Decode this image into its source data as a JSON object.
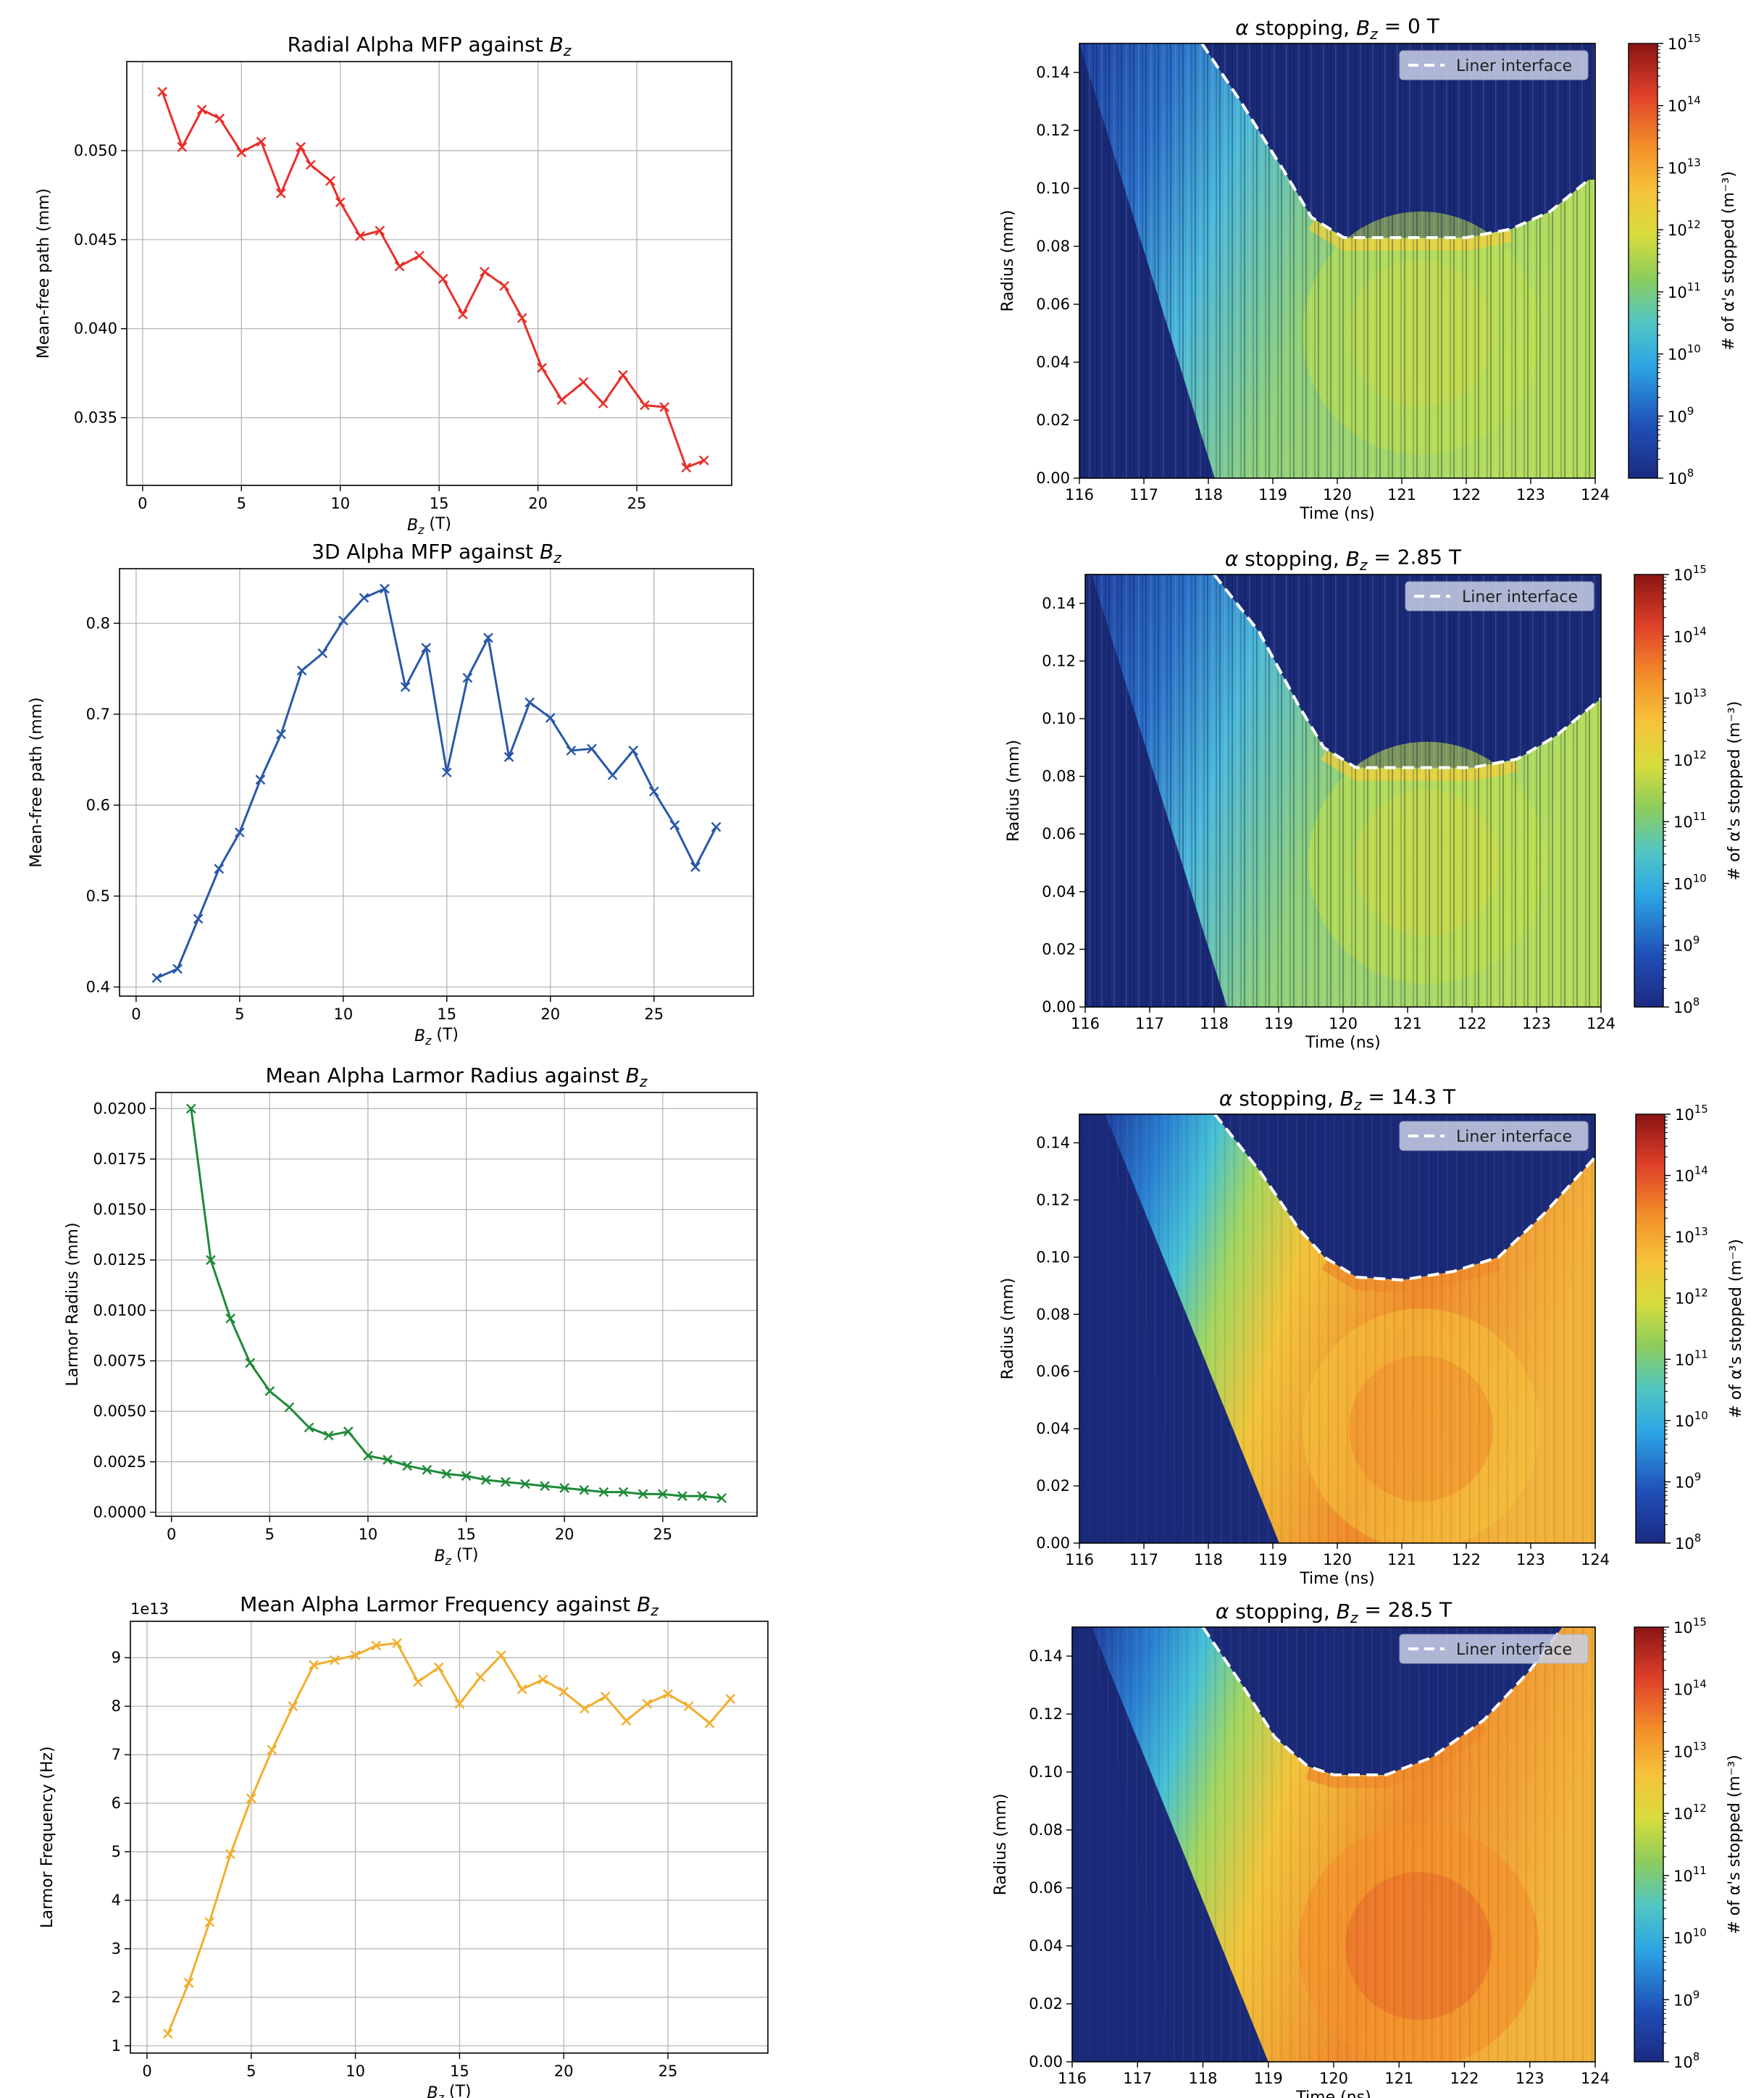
{
  "figure": {
    "left_panels": [
      {
        "id": "radial-mfp",
        "title": "Radial Alpha MFP against B_z",
        "xlabel": "B_z (T)",
        "ylabel": "Mean-free path (mm)",
        "color": "#e8302a",
        "xlim": [
          -0.8,
          29.8
        ],
        "ylim": [
          0.0312,
          0.055
        ],
        "xticks": [
          0,
          5,
          10,
          15,
          20,
          25
        ],
        "yticks": [
          0.035,
          0.04,
          0.045,
          0.05
        ],
        "yticklabels": [
          "0.035",
          "0.040",
          "0.045",
          "0.050"
        ],
        "multiplier": ""
      },
      {
        "id": "3d-mfp",
        "title": "3D Alpha MFP against B_z",
        "xlabel": "B_z (T)",
        "ylabel": "Mean-free path (mm)",
        "color": "#2a58a8",
        "xlim": [
          -0.8,
          29.8
        ],
        "ylim": [
          0.39,
          0.86
        ],
        "xticks": [
          0,
          5,
          10,
          15,
          20,
          25
        ],
        "yticks": [
          0.4,
          0.5,
          0.6,
          0.7,
          0.8
        ],
        "yticklabels": [
          "0.4",
          "0.5",
          "0.6",
          "0.7",
          "0.8"
        ],
        "multiplier": ""
      },
      {
        "id": "larmor-radius",
        "title": "Mean Alpha Larmor Radius against B_z",
        "xlabel": "B_z (T)",
        "ylabel": "Larmor Radius (mm)",
        "color": "#1e8a38",
        "xlim": [
          -0.8,
          29.8
        ],
        "ylim": [
          -0.0002,
          0.0208
        ],
        "xticks": [
          0,
          5,
          10,
          15,
          20,
          25
        ],
        "yticks": [
          0.0,
          0.0025,
          0.005,
          0.0075,
          0.01,
          0.0125,
          0.015,
          0.0175,
          0.02
        ],
        "yticklabels": [
          "0.0000",
          "0.0025",
          "0.0050",
          "0.0075",
          "0.0100",
          "0.0125",
          "0.0150",
          "0.0175",
          "0.0200"
        ],
        "multiplier": ""
      },
      {
        "id": "larmor-frequency",
        "title": "Mean Alpha Larmor Frequency against B_z",
        "xlabel": "B_z (T)",
        "ylabel": "Larmor Frequency (Hz)",
        "color": "#f2ae2e",
        "xlim": [
          -0.8,
          29.8
        ],
        "ylim": [
          0.85,
          9.75
        ],
        "xticks": [
          0,
          5,
          10,
          15,
          20,
          25
        ],
        "yticks": [
          1,
          2,
          3,
          4,
          5,
          6,
          7,
          8,
          9
        ],
        "yticklabels": [
          "1",
          "2",
          "3",
          "4",
          "5",
          "6",
          "7",
          "8",
          "9"
        ],
        "multiplier": "1e13"
      }
    ],
    "right_panels": [
      {
        "id": "stopping-0",
        "title": "α stopping, B_z = 0 T",
        "bz": 0.0
      },
      {
        "id": "stopping-2-85",
        "title": "α stopping, B_z = 2.85 T",
        "bz": 2.85
      },
      {
        "id": "stopping-14-3",
        "title": "α stopping, B_z = 14.3 T",
        "bz": 14.3
      },
      {
        "id": "stopping-28-5",
        "title": "α stopping, B_z = 28.5 T",
        "bz": 28.5
      }
    ],
    "heatmap_common": {
      "xlabel": "Time (ns)",
      "ylabel": "Radius (mm)",
      "legend_label": "Liner interface",
      "xlim": [
        116,
        124
      ],
      "ylim": [
        0,
        0.15
      ],
      "xticks": [
        116,
        117,
        118,
        119,
        120,
        121,
        122,
        123,
        124
      ],
      "yticks": [
        0.0,
        0.02,
        0.04,
        0.06,
        0.08,
        0.1,
        0.12,
        0.14
      ],
      "yticklabels": [
        "0.00",
        "0.02",
        "0.04",
        "0.06",
        "0.08",
        "0.10",
        "0.12",
        "0.14"
      ],
      "colorbar_label": "# of α's stopped (m⁻³)",
      "colorbar_exponents": [
        8,
        9,
        10,
        11,
        12,
        13,
        14,
        15
      ]
    }
  },
  "chart_data": [
    {
      "type": "line",
      "title": "Radial Alpha MFP against B_z",
      "xlabel": "B_z (T)",
      "ylabel": "Mean-free path (mm)",
      "x": [
        1.0,
        2.0,
        3.0,
        3.9,
        5.0,
        6.0,
        7.0,
        8.0,
        8.5,
        9.5,
        10.0,
        11.0,
        12.0,
        13.0,
        14.0,
        15.2,
        16.2,
        17.3,
        18.3,
        19.2,
        20.2,
        21.2,
        22.3,
        23.3,
        24.3,
        25.4,
        26.4,
        27.5,
        28.4
      ],
      "y": [
        0.0533,
        0.0502,
        0.0523,
        0.0518,
        0.0499,
        0.0505,
        0.0476,
        0.0502,
        0.0492,
        0.0483,
        0.0471,
        0.0452,
        0.0455,
        0.0435,
        0.0441,
        0.0428,
        0.0408,
        0.0432,
        0.0424,
        0.0406,
        0.0378,
        0.036,
        0.037,
        0.0358,
        0.0374,
        0.0357,
        0.0356,
        0.0322,
        0.0326
      ]
    },
    {
      "type": "line",
      "title": "3D Alpha MFP against B_z",
      "xlabel": "B_z (T)",
      "ylabel": "Mean-free path (mm)",
      "x": [
        1.0,
        2.0,
        3.0,
        4.0,
        5.0,
        6.0,
        7.0,
        8.0,
        9.0,
        10.0,
        11.0,
        12.0,
        13.0,
        14.0,
        15.0,
        16.0,
        17.0,
        18.0,
        19.0,
        20.0,
        21.0,
        22.0,
        23.0,
        24.0,
        25.0,
        26.0,
        27.0,
        28.0
      ],
      "y": [
        0.41,
        0.42,
        0.475,
        0.53,
        0.57,
        0.628,
        0.678,
        0.748,
        0.767,
        0.803,
        0.828,
        0.838,
        0.73,
        0.773,
        0.636,
        0.74,
        0.784,
        0.653,
        0.713,
        0.696,
        0.66,
        0.662,
        0.633,
        0.66,
        0.615,
        0.578,
        0.532,
        0.576
      ]
    },
    {
      "type": "line",
      "title": "Mean Alpha Larmor Radius against B_z",
      "xlabel": "B_z (T)",
      "ylabel": "Larmor Radius (mm)",
      "x": [
        1.0,
        2.0,
        3.0,
        4.0,
        5.0,
        6.0,
        7.0,
        8.0,
        9.0,
        10.0,
        11.0,
        12.0,
        13.0,
        14.0,
        15.0,
        16.0,
        17.0,
        18.0,
        19.0,
        20.0,
        21.0,
        22.0,
        23.0,
        24.0,
        25.0,
        26.0,
        27.0,
        28.0
      ],
      "y": [
        0.02,
        0.0125,
        0.0096,
        0.0074,
        0.006,
        0.0052,
        0.0042,
        0.0038,
        0.004,
        0.0028,
        0.0026,
        0.0023,
        0.0021,
        0.0019,
        0.0018,
        0.0016,
        0.0015,
        0.0014,
        0.0013,
        0.0012,
        0.0011,
        0.001,
        0.001,
        0.0009,
        0.0009,
        0.0008,
        0.0008,
        0.0007
      ]
    },
    {
      "type": "line",
      "title": "Mean Alpha Larmor Frequency against B_z",
      "xlabel": "B_z (T)",
      "ylabel": "Larmor Frequency (Hz)",
      "y_multiplier": "1e13",
      "x": [
        1.0,
        2.0,
        3.0,
        4.0,
        5.0,
        6.0,
        7.0,
        8.0,
        9.0,
        10.0,
        11.0,
        12.0,
        13.0,
        14.0,
        15.0,
        16.0,
        17.0,
        18.0,
        19.0,
        20.0,
        21.0,
        22.0,
        23.0,
        24.0,
        25.0,
        26.0,
        27.0,
        28.0
      ],
      "y": [
        1.25,
        2.3,
        3.55,
        4.95,
        6.1,
        7.1,
        8.0,
        8.85,
        8.95,
        9.05,
        9.25,
        9.3,
        8.5,
        8.8,
        8.05,
        8.6,
        9.05,
        8.35,
        8.55,
        8.3,
        7.95,
        8.2,
        7.7,
        8.05,
        8.25,
        8.0,
        7.65,
        8.15
      ]
    },
    {
      "type": "heatmap",
      "title": "α stopping, B_z = 0 T",
      "xlabel": "Time (ns)",
      "ylabel": "Radius (mm)",
      "colorbar_label": "# of α's stopped (m⁻³)",
      "colorscale": "log",
      "clim": [
        100000000.0,
        1000000000000000.0
      ],
      "liner_interface": {
        "t": [
          117.9,
          118.5,
          119.2,
          119.6,
          120.1,
          121.0,
          122.0,
          122.7,
          123.3,
          123.9
        ],
        "r": [
          0.15,
          0.13,
          0.105,
          0.09,
          0.083,
          0.083,
          0.083,
          0.086,
          0.092,
          0.103
        ]
      }
    },
    {
      "type": "heatmap",
      "title": "α stopping, B_z = 2.85 T",
      "xlabel": "Time (ns)",
      "ylabel": "Radius (mm)",
      "colorbar_label": "# of α's stopped (m⁻³)",
      "colorscale": "log",
      "clim": [
        100000000.0,
        1000000000000000.0
      ],
      "liner_interface": {
        "t": [
          118.0,
          118.7,
          119.3,
          119.7,
          120.2,
          121.0,
          122.0,
          122.7,
          123.3,
          124.0
        ],
        "r": [
          0.15,
          0.13,
          0.105,
          0.09,
          0.083,
          0.083,
          0.083,
          0.086,
          0.094,
          0.107
        ]
      }
    },
    {
      "type": "heatmap",
      "title": "α stopping, B_z = 14.3 T",
      "xlabel": "Time (ns)",
      "ylabel": "Radius (mm)",
      "colorbar_label": "# of α's stopped (m⁻³)",
      "colorscale": "log",
      "clim": [
        100000000.0,
        1000000000000000.0
      ],
      "liner_interface": {
        "t": [
          118.1,
          118.8,
          119.4,
          119.8,
          120.3,
          121.0,
          121.8,
          122.5,
          123.2,
          124.0
        ],
        "r": [
          0.15,
          0.13,
          0.11,
          0.1,
          0.093,
          0.092,
          0.095,
          0.1,
          0.115,
          0.135
        ]
      }
    },
    {
      "type": "heatmap",
      "title": "α stopping, B_z = 28.5 T",
      "xlabel": "Time (ns)",
      "ylabel": "Radius (mm)",
      "colorbar_label": "# of α's stopped (m⁻³)",
      "colorscale": "log",
      "clim": [
        100000000.0,
        1000000000000000.0
      ],
      "liner_interface": {
        "t": [
          118.0,
          118.6,
          119.1,
          119.6,
          120.0,
          120.8,
          121.5,
          122.3,
          123.0,
          123.5
        ],
        "r": [
          0.15,
          0.13,
          0.112,
          0.102,
          0.099,
          0.099,
          0.105,
          0.118,
          0.135,
          0.15
        ]
      }
    }
  ]
}
